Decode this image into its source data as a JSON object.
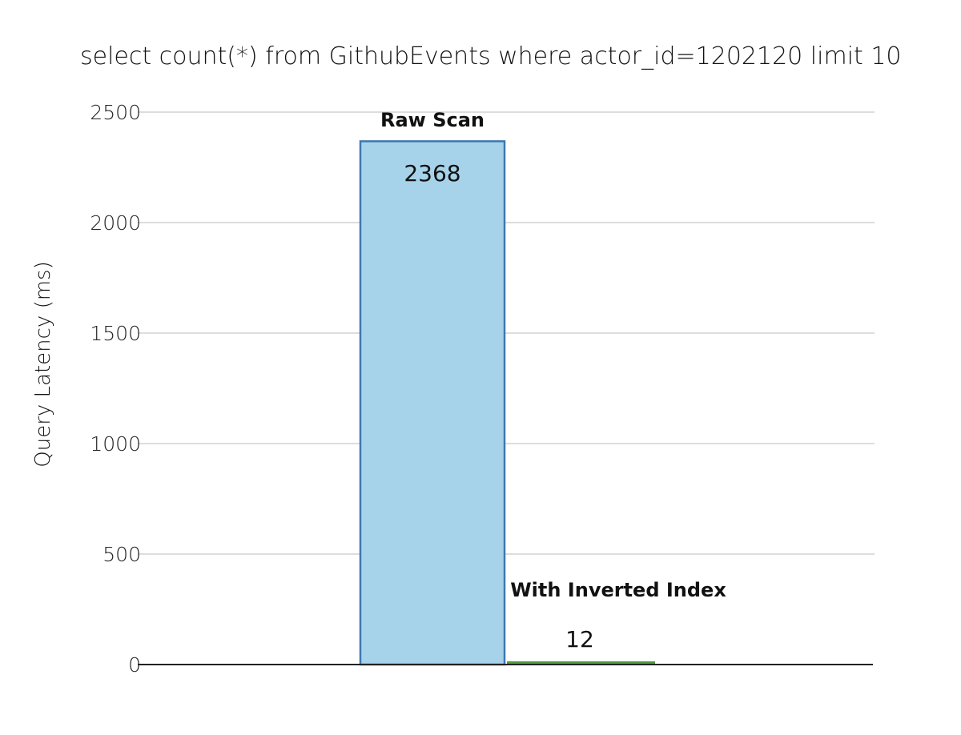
{
  "chart_data": {
    "type": "bar",
    "title": "select count(*) from GithubEvents where actor_id=1202120 limit 10",
    "xlabel": "",
    "ylabel": "Query Latency (ms)",
    "ylim": [
      0,
      2500
    ],
    "yticks": [
      0,
      500,
      1000,
      1500,
      2000,
      2500
    ],
    "grid": true,
    "categories": [
      "Raw Scan",
      "With Inverted Index"
    ],
    "values": [
      2368,
      12
    ],
    "data_labels": [
      "2368",
      "12"
    ],
    "colors": {
      "Raw Scan": "#a6d3ea",
      "Raw Scan_border": "#3d78b0",
      "With Inverted Index": "#4f9a3e"
    }
  }
}
